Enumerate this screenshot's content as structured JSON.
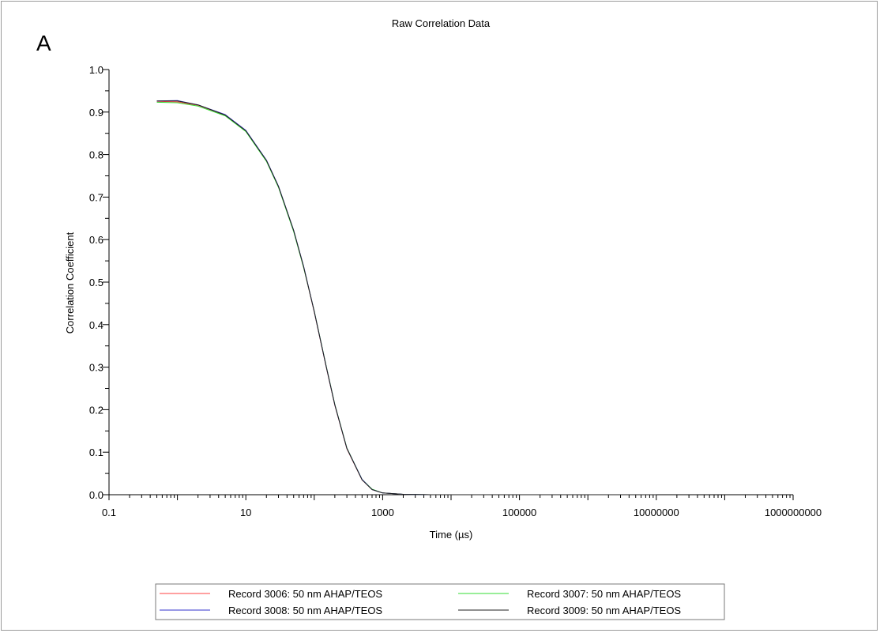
{
  "panel_label": "A",
  "chart_data": {
    "type": "line",
    "title": "Raw Correlation Data",
    "xlabel": "Time (µs)",
    "ylabel": "Correlation Coefficient",
    "x_scale": "log",
    "xlim": [
      0.1,
      1000000000
    ],
    "ylim": [
      0,
      1
    ],
    "x_tick_labels": [
      "0.1",
      "10",
      "1000",
      "100000",
      "10000000",
      "1000000000"
    ],
    "x_tick_values": [
      0.1,
      10,
      1000,
      100000,
      10000000,
      1000000000
    ],
    "y_tick_labels": [
      "0.0",
      "0.1",
      "0.2",
      "0.3",
      "0.4",
      "0.5",
      "0.6",
      "0.7",
      "0.8",
      "0.9",
      "1.0"
    ],
    "y_tick_values": [
      0,
      0.1,
      0.2,
      0.3,
      0.4,
      0.5,
      0.6,
      0.7,
      0.8,
      0.9,
      1.0
    ],
    "grid": false,
    "legend_position": "bottom",
    "x": [
      0.5,
      1,
      2,
      5,
      10,
      20,
      30,
      50,
      70,
      100,
      150,
      200,
      300,
      500,
      700,
      1000,
      2000,
      5000,
      10000,
      100000,
      1000000,
      10000000
    ],
    "series": [
      {
        "name": "Record 3006: 50 nm AHAP/TEOS",
        "color": "#ff4040",
        "values": [
          0.925,
          0.924,
          0.916,
          0.893,
          0.856,
          0.786,
          0.725,
          0.621,
          0.535,
          0.43,
          0.3,
          0.21,
          0.108,
          0.035,
          0.012,
          0.004,
          0.001,
          0.0,
          0.0,
          0.0,
          0.0,
          0.0
        ]
      },
      {
        "name": "Record 3007: 50 nm AHAP/TEOS",
        "color": "#33dd33",
        "values": [
          0.923,
          0.922,
          0.914,
          0.891,
          0.854,
          0.784,
          0.723,
          0.619,
          0.534,
          0.432,
          0.302,
          0.212,
          0.11,
          0.036,
          0.013,
          0.004,
          0.001,
          0.0,
          0.0,
          0.0,
          0.0,
          0.0
        ]
      },
      {
        "name": "Record 3008: 50 nm AHAP/TEOS",
        "color": "#3333cc",
        "values": [
          0.926,
          0.927,
          0.917,
          0.894,
          0.857,
          0.787,
          0.726,
          0.622,
          0.537,
          0.431,
          0.301,
          0.211,
          0.109,
          0.036,
          0.012,
          0.004,
          0.001,
          0.0,
          0.0,
          0.0,
          0.0,
          0.0
        ]
      },
      {
        "name": "Record 3009: 50 nm AHAP/TEOS",
        "color": "#222222",
        "values": [
          0.926,
          0.926,
          0.917,
          0.893,
          0.856,
          0.786,
          0.725,
          0.622,
          0.536,
          0.431,
          0.301,
          0.211,
          0.109,
          0.035,
          0.012,
          0.004,
          0.001,
          0.0,
          0.0,
          0.0,
          0.0,
          0.0
        ]
      }
    ]
  }
}
